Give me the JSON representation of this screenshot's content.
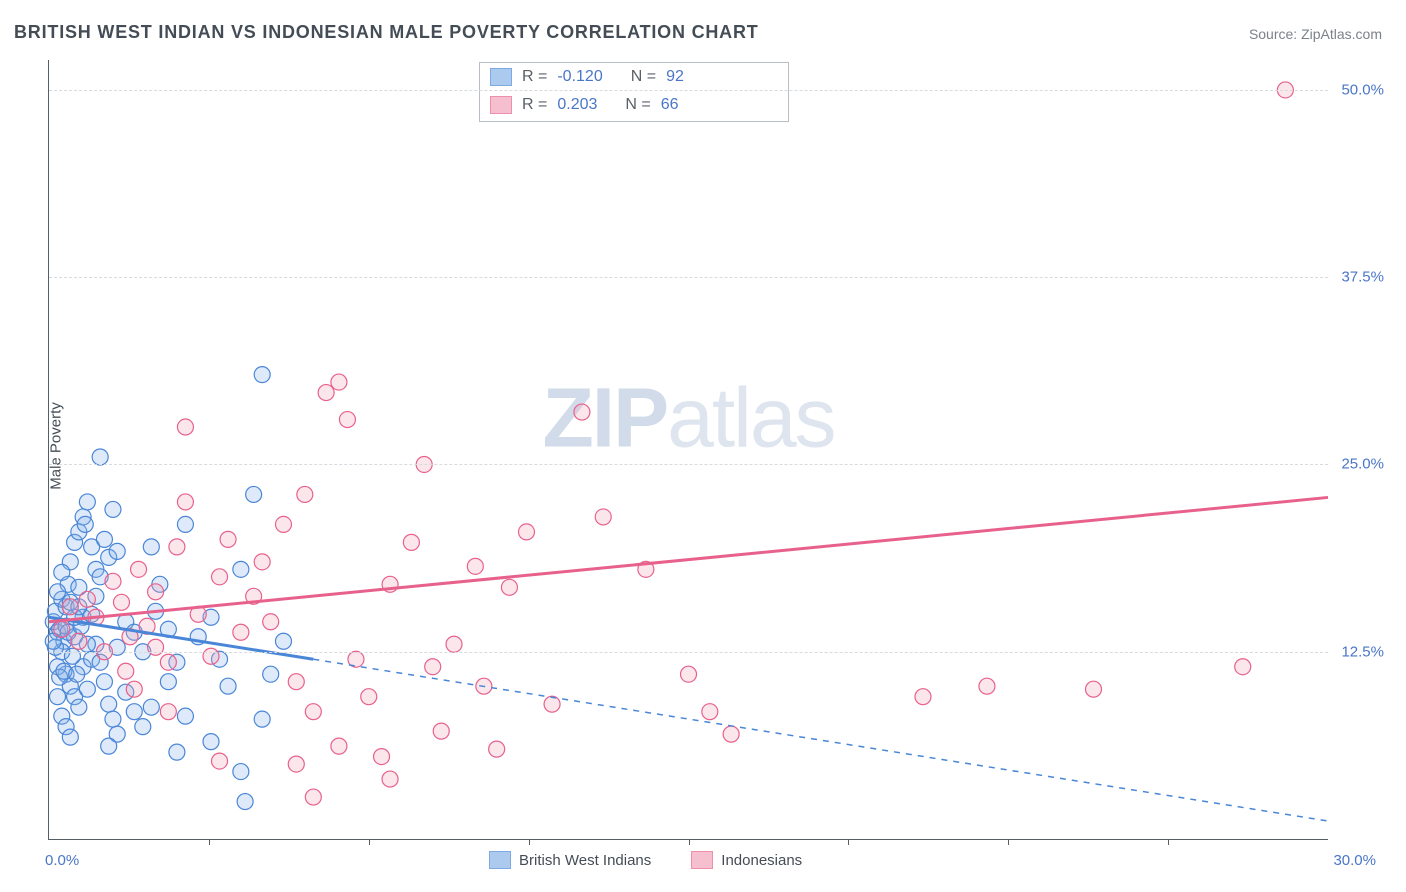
{
  "title": "BRITISH WEST INDIAN VS INDONESIAN MALE POVERTY CORRELATION CHART",
  "source_label": "Source: ZipAtlas.com",
  "ylabel": "Male Poverty",
  "watermark": {
    "zip": "ZIP",
    "atlas": "atlas"
  },
  "chart": {
    "type": "scatter",
    "xlim": [
      0,
      30
    ],
    "ylim": [
      0,
      52
    ],
    "x_tick_label_min": "0.0%",
    "x_tick_label_max": "30.0%",
    "x_minor_ticks": [
      3.75,
      7.5,
      11.25,
      15,
      18.75,
      22.5,
      26.25
    ],
    "y_gridlines": [
      12.5,
      25.0,
      37.5,
      50.0
    ],
    "y_tick_labels": [
      "12.5%",
      "25.0%",
      "37.5%",
      "50.0%"
    ],
    "background_color": "#ffffff",
    "grid_color": "#d7dbe0",
    "axis_color": "#555d66",
    "axis_label_color": "#4a76c7",
    "marker_radius": 8,
    "marker_stroke_width": 1.2,
    "marker_fill_opacity": 0.28,
    "regression_line_width": 3
  },
  "series": {
    "bwi": {
      "label": "British West Indians",
      "color_stroke": "#4a86d8",
      "color_fill": "#8ab4e8",
      "R_label": "R =",
      "R_value": "-0.120",
      "N_label": "N =",
      "N_value": "92",
      "regression": {
        "x1": 0,
        "y1": 14.8,
        "x2": 6.2,
        "y2": 12.0,
        "dash_x2": 30,
        "dash_y2": 1.2
      },
      "points": [
        [
          0.1,
          14.5
        ],
        [
          0.2,
          13.8
        ],
        [
          0.15,
          15.2
        ],
        [
          0.3,
          16.0
        ],
        [
          0.25,
          14.0
        ],
        [
          0.4,
          15.5
        ],
        [
          0.35,
          13.2
        ],
        [
          0.5,
          18.5
        ],
        [
          0.6,
          19.8
        ],
        [
          0.45,
          17.0
        ],
        [
          0.7,
          20.5
        ],
        [
          0.8,
          21.5
        ],
        [
          0.9,
          22.5
        ],
        [
          0.85,
          21.0
        ],
        [
          1.0,
          19.5
        ],
        [
          1.1,
          18.0
        ],
        [
          1.2,
          17.5
        ],
        [
          1.3,
          20.0
        ],
        [
          1.4,
          18.8
        ],
        [
          1.5,
          22.0
        ],
        [
          1.6,
          19.2
        ],
        [
          0.3,
          12.5
        ],
        [
          0.4,
          11.0
        ],
        [
          0.5,
          10.2
        ],
        [
          0.6,
          9.5
        ],
        [
          0.7,
          8.8
        ],
        [
          0.8,
          11.5
        ],
        [
          0.9,
          10.0
        ],
        [
          1.0,
          12.0
        ],
        [
          1.1,
          13.0
        ],
        [
          1.2,
          11.8
        ],
        [
          1.3,
          10.5
        ],
        [
          1.4,
          9.0
        ],
        [
          1.5,
          8.0
        ],
        [
          1.6,
          12.8
        ],
        [
          1.2,
          25.5
        ],
        [
          0.2,
          16.5
        ],
        [
          0.3,
          17.8
        ],
        [
          0.4,
          14.2
        ],
        [
          0.5,
          15.8
        ],
        [
          0.6,
          13.5
        ],
        [
          0.7,
          16.8
        ],
        [
          0.8,
          14.8
        ],
        [
          0.9,
          13.0
        ],
        [
          1.0,
          15.0
        ],
        [
          1.1,
          16.2
        ],
        [
          1.8,
          14.5
        ],
        [
          2.0,
          13.8
        ],
        [
          2.2,
          12.5
        ],
        [
          2.4,
          19.5
        ],
        [
          2.6,
          17.0
        ],
        [
          2.8,
          10.5
        ],
        [
          3.0,
          11.8
        ],
        [
          3.2,
          21.0
        ],
        [
          2.5,
          15.2
        ],
        [
          2.0,
          8.5
        ],
        [
          1.8,
          9.8
        ],
        [
          1.6,
          7.0
        ],
        [
          1.4,
          6.2
        ],
        [
          2.2,
          7.5
        ],
        [
          2.4,
          8.8
        ],
        [
          3.5,
          13.5
        ],
        [
          3.8,
          14.8
        ],
        [
          4.0,
          12.0
        ],
        [
          4.2,
          10.2
        ],
        [
          4.5,
          18.0
        ],
        [
          4.8,
          23.0
        ],
        [
          5.0,
          31.0
        ],
        [
          3.8,
          6.5
        ],
        [
          4.5,
          4.5
        ],
        [
          4.6,
          2.5
        ],
        [
          5.2,
          11.0
        ],
        [
          5.5,
          13.2
        ],
        [
          5.0,
          8.0
        ],
        [
          3.2,
          8.2
        ],
        [
          3.0,
          5.8
        ],
        [
          2.8,
          14.0
        ],
        [
          0.2,
          11.5
        ],
        [
          0.15,
          12.8
        ],
        [
          0.25,
          10.8
        ],
        [
          0.35,
          11.2
        ],
        [
          0.45,
          13.8
        ],
        [
          0.55,
          12.2
        ],
        [
          0.65,
          11.0
        ],
        [
          0.75,
          14.2
        ],
        [
          0.2,
          9.5
        ],
        [
          0.3,
          8.2
        ],
        [
          0.4,
          7.5
        ],
        [
          0.5,
          6.8
        ],
        [
          0.6,
          14.8
        ],
        [
          0.7,
          15.5
        ],
        [
          0.1,
          13.2
        ]
      ]
    },
    "indo": {
      "label": "Indonesians",
      "color_stroke": "#e8618c",
      "color_fill": "#f2a5bc",
      "R_label": "R =",
      "R_value": "0.203",
      "N_label": "N =",
      "N_value": "66",
      "regression": {
        "x1": 0,
        "y1": 14.5,
        "x2": 30,
        "y2": 22.8
      },
      "points": [
        [
          0.3,
          14.0
        ],
        [
          0.5,
          15.5
        ],
        [
          0.7,
          13.2
        ],
        [
          0.9,
          16.0
        ],
        [
          1.1,
          14.8
        ],
        [
          1.3,
          12.5
        ],
        [
          1.5,
          17.2
        ],
        [
          1.7,
          15.8
        ],
        [
          1.9,
          13.5
        ],
        [
          2.1,
          18.0
        ],
        [
          2.3,
          14.2
        ],
        [
          2.5,
          16.5
        ],
        [
          2.8,
          11.8
        ],
        [
          3.0,
          19.5
        ],
        [
          3.2,
          27.5
        ],
        [
          3.5,
          15.0
        ],
        [
          3.8,
          12.2
        ],
        [
          4.0,
          17.5
        ],
        [
          4.2,
          20.0
        ],
        [
          4.5,
          13.8
        ],
        [
          4.8,
          16.2
        ],
        [
          5.0,
          18.5
        ],
        [
          5.2,
          14.5
        ],
        [
          5.5,
          21.0
        ],
        [
          5.8,
          10.5
        ],
        [
          6.0,
          23.0
        ],
        [
          6.2,
          8.5
        ],
        [
          6.5,
          29.8
        ],
        [
          6.8,
          30.5
        ],
        [
          7.0,
          28.0
        ],
        [
          7.2,
          12.0
        ],
        [
          7.5,
          9.5
        ],
        [
          7.8,
          5.5
        ],
        [
          8.0,
          17.0
        ],
        [
          8.5,
          19.8
        ],
        [
          8.8,
          25.0
        ],
        [
          9.0,
          11.5
        ],
        [
          9.5,
          13.0
        ],
        [
          10.0,
          18.2
        ],
        [
          10.2,
          10.2
        ],
        [
          10.8,
          16.8
        ],
        [
          11.2,
          20.5
        ],
        [
          6.2,
          2.8
        ],
        [
          5.8,
          5.0
        ],
        [
          6.8,
          6.2
        ],
        [
          8.0,
          4.0
        ],
        [
          9.2,
          7.2
        ],
        [
          12.5,
          28.5
        ],
        [
          13.0,
          21.5
        ],
        [
          14.0,
          18.0
        ],
        [
          15.0,
          11.0
        ],
        [
          15.5,
          8.5
        ],
        [
          16.0,
          7.0
        ],
        [
          10.5,
          6.0
        ],
        [
          11.8,
          9.0
        ],
        [
          4.0,
          5.2
        ],
        [
          20.5,
          9.5
        ],
        [
          22.0,
          10.2
        ],
        [
          24.5,
          10.0
        ],
        [
          28.0,
          11.5
        ],
        [
          29.0,
          50.0
        ],
        [
          2.0,
          10.0
        ],
        [
          2.8,
          8.5
        ],
        [
          3.2,
          22.5
        ],
        [
          1.8,
          11.2
        ],
        [
          2.5,
          12.8
        ]
      ]
    }
  }
}
